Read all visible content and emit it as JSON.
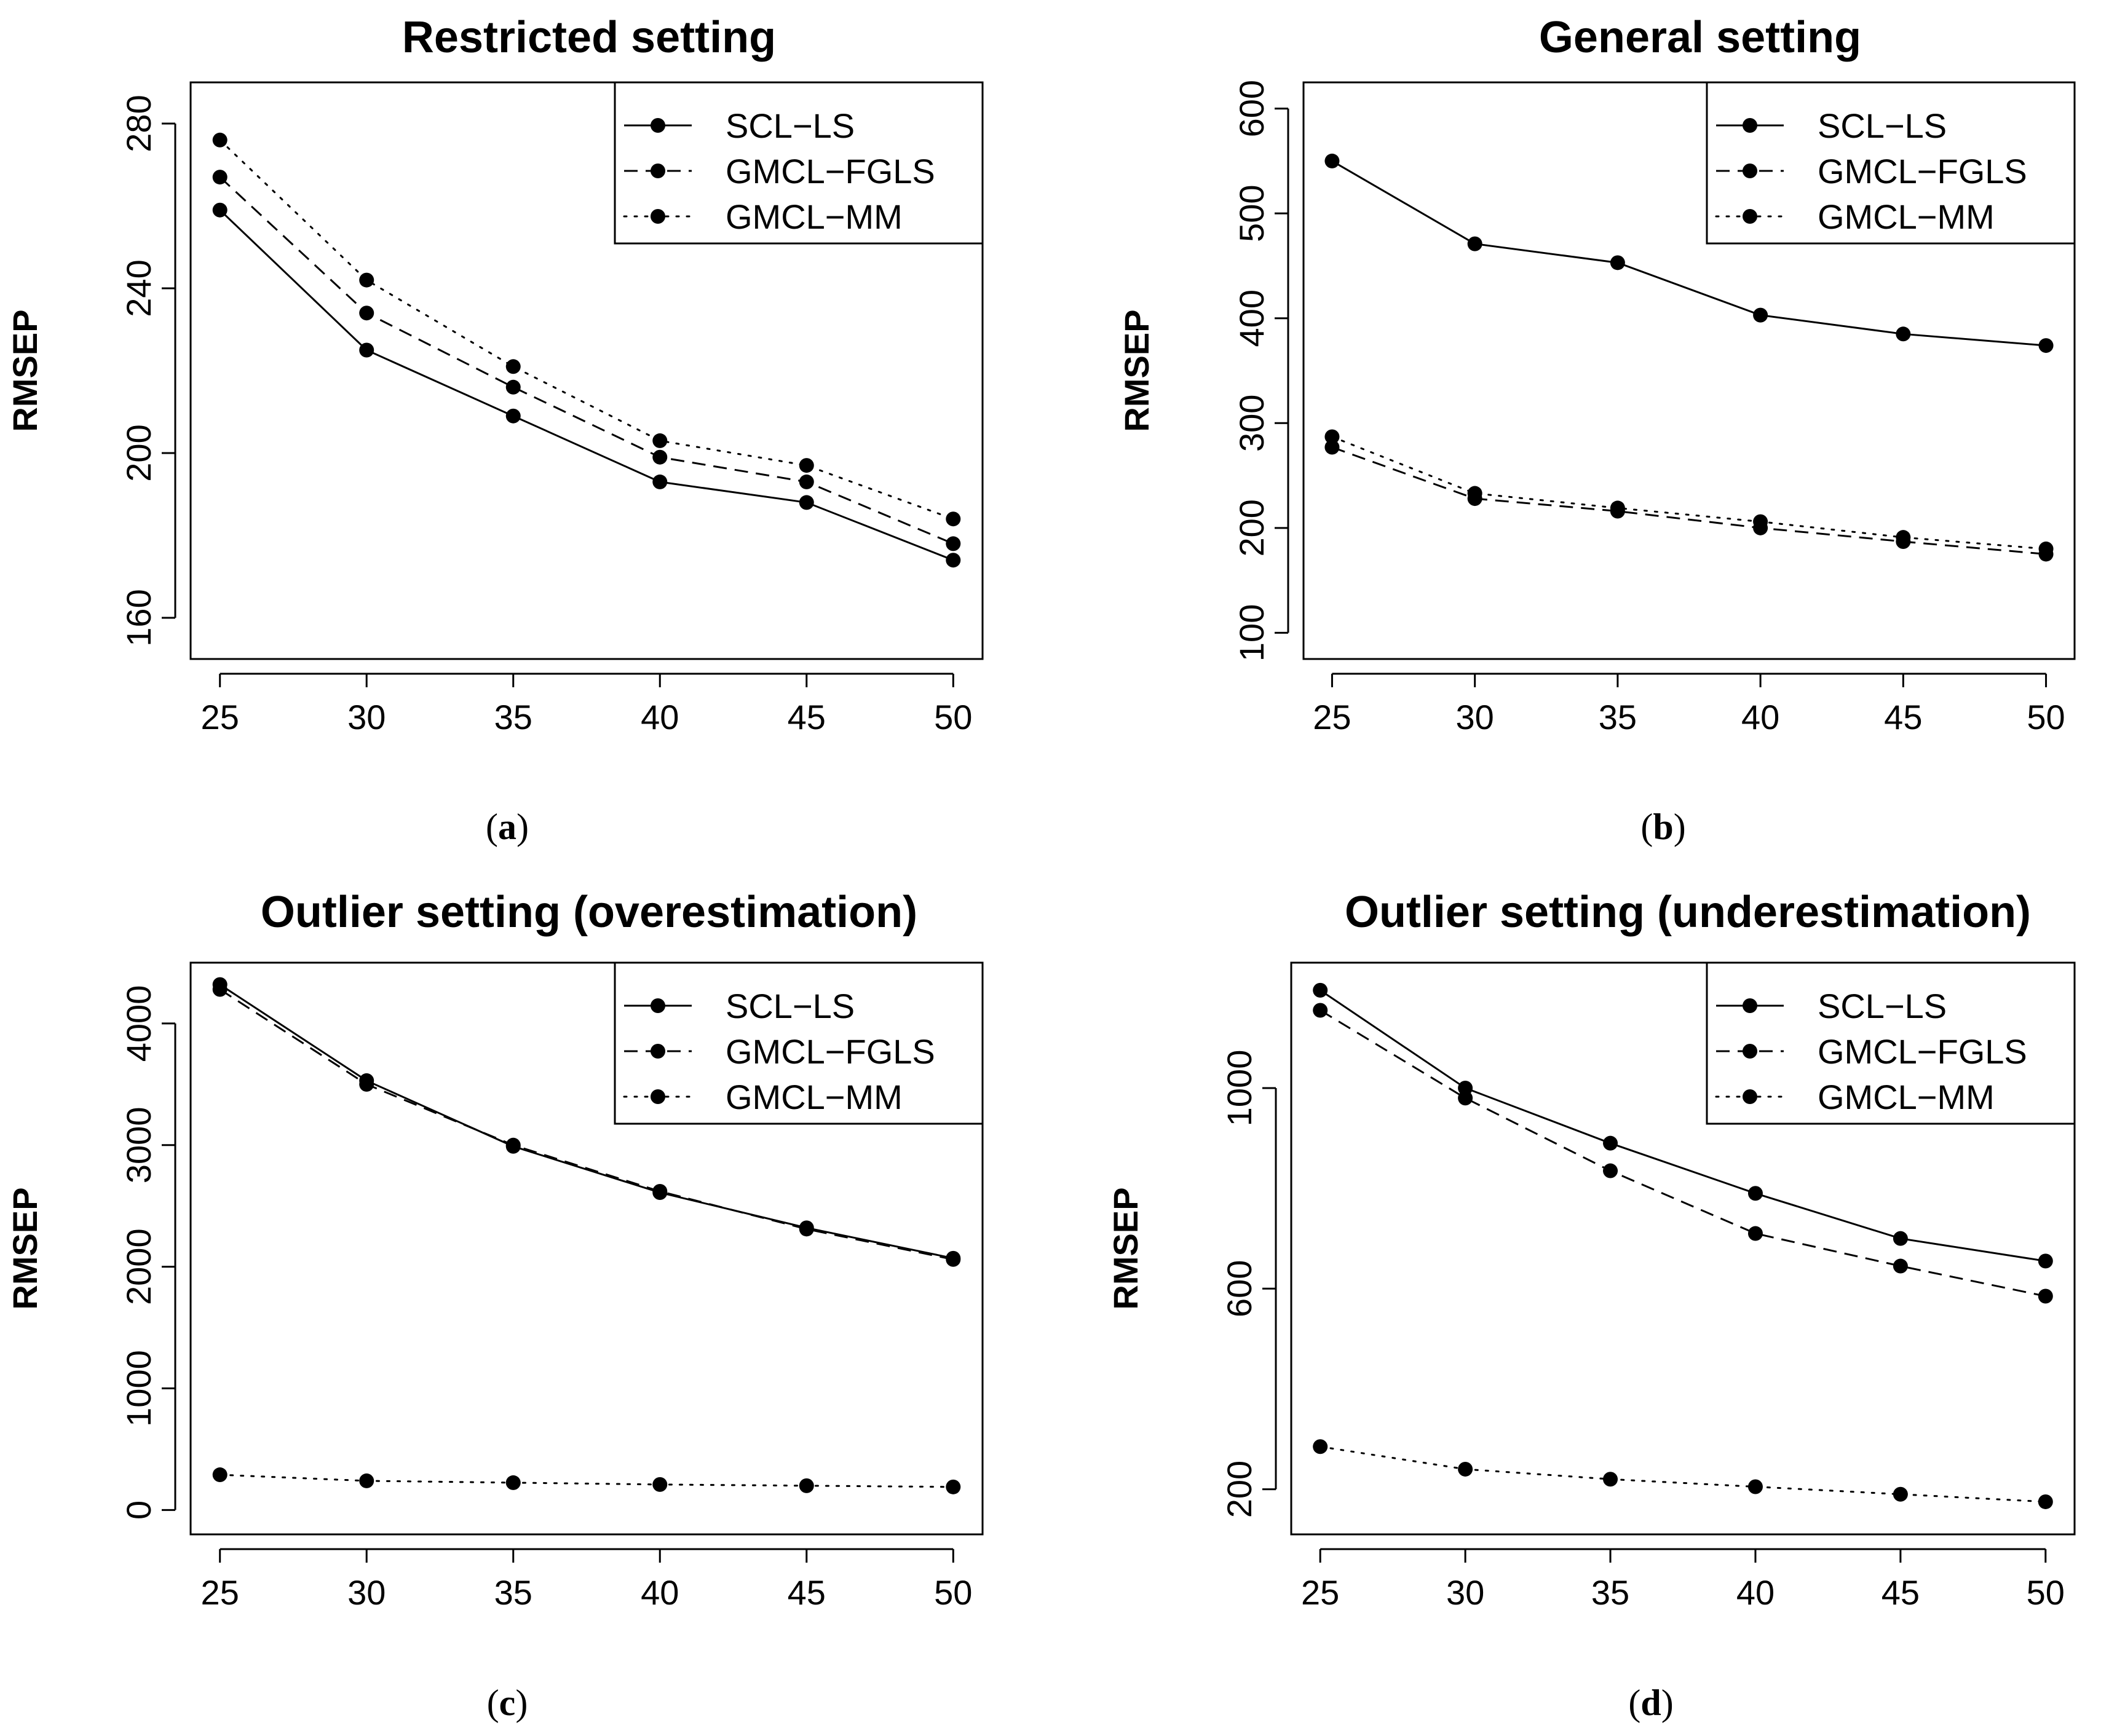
{
  "figure": {
    "panels": [
      {
        "title": "Restricted setting",
        "caption_letter": "a"
      },
      {
        "title": "General setting",
        "caption_letter": "b"
      },
      {
        "title": "Outlier setting (overestimation)",
        "caption_letter": "c"
      },
      {
        "title": "Outlier setting (underestimation)",
        "caption_letter": "d"
      }
    ]
  },
  "chart_data": [
    {
      "type": "line",
      "title": "Restricted setting",
      "xlabel": "",
      "ylabel": "RMSEP",
      "x": [
        25,
        30,
        35,
        40,
        45,
        50
      ],
      "xlim": [
        24,
        51
      ],
      "ylim": [
        150,
        290
      ],
      "yticks": [
        160,
        200,
        240,
        280
      ],
      "xticks": [
        25,
        30,
        35,
        40,
        45,
        50
      ],
      "legend": "top-right",
      "series": [
        {
          "name": "SCL−LS",
          "style": "solid",
          "values": [
            259,
            225,
            209,
            193,
            188,
            174
          ]
        },
        {
          "name": "GMCL−FGLS",
          "style": "dashed",
          "values": [
            267,
            234,
            216,
            199,
            193,
            178
          ]
        },
        {
          "name": "GMCL−MM",
          "style": "dotted",
          "values": [
            276,
            242,
            221,
            203,
            197,
            184
          ]
        }
      ]
    },
    {
      "type": "line",
      "title": "General setting",
      "xlabel": "",
      "ylabel": "RMSEP",
      "x": [
        25,
        30,
        35,
        40,
        45,
        50
      ],
      "xlim": [
        24,
        51
      ],
      "ylim": [
        75,
        625
      ],
      "yticks": [
        100,
        200,
        300,
        400,
        500,
        600
      ],
      "xticks": [
        25,
        30,
        35,
        40,
        45,
        50
      ],
      "legend": "top-right",
      "series": [
        {
          "name": "SCL−LS",
          "style": "solid",
          "values": [
            550,
            471,
            453,
            403,
            385,
            374
          ]
        },
        {
          "name": "GMCL−FGLS",
          "style": "dashed",
          "values": [
            277,
            228,
            216,
            200,
            187,
            175
          ]
        },
        {
          "name": "GMCL−MM",
          "style": "dotted",
          "values": [
            287,
            233,
            219,
            206,
            191,
            180
          ]
        }
      ]
    },
    {
      "type": "line",
      "title": "Outlier setting (overestimation)",
      "xlabel": "",
      "ylabel": "RMSEP",
      "x": [
        25,
        30,
        35,
        40,
        45,
        50
      ],
      "xlim": [
        24,
        51
      ],
      "ylim": [
        -200,
        4500
      ],
      "yticks": [
        0,
        1000,
        2000,
        3000,
        4000
      ],
      "xticks": [
        25,
        30,
        35,
        40,
        45,
        50
      ],
      "legend": "top-right",
      "series": [
        {
          "name": "SCL−LS",
          "style": "solid",
          "values": [
            4320,
            3530,
            2990,
            2610,
            2320,
            2070
          ]
        },
        {
          "name": "GMCL−FGLS",
          "style": "dashed",
          "values": [
            4280,
            3500,
            3000,
            2620,
            2310,
            2060
          ]
        },
        {
          "name": "GMCL−MM",
          "style": "dotted",
          "values": [
            290,
            240,
            225,
            210,
            200,
            190
          ]
        }
      ]
    },
    {
      "type": "line",
      "title": "Outlier setting (underestimation)",
      "xlabel": "",
      "ylabel": "RMSEP",
      "x": [
        25,
        30,
        35,
        40,
        45,
        50
      ],
      "xlim": [
        24,
        51
      ],
      "ylim": [
        110,
        1250
      ],
      "yticks": [
        200,
        600,
        1000
      ],
      "xticks": [
        25,
        30,
        35,
        40,
        45,
        50
      ],
      "legend": "top-right",
      "series": [
        {
          "name": "SCL−LS",
          "style": "solid",
          "values": [
            1195,
            1000,
            890,
            790,
            700,
            655
          ]
        },
        {
          "name": "GMCL−FGLS",
          "style": "dashed",
          "values": [
            1155,
            980,
            835,
            710,
            645,
            585
          ]
        },
        {
          "name": "GMCL−MM",
          "style": "dotted",
          "values": [
            285,
            240,
            220,
            205,
            190,
            175
          ]
        }
      ]
    }
  ]
}
